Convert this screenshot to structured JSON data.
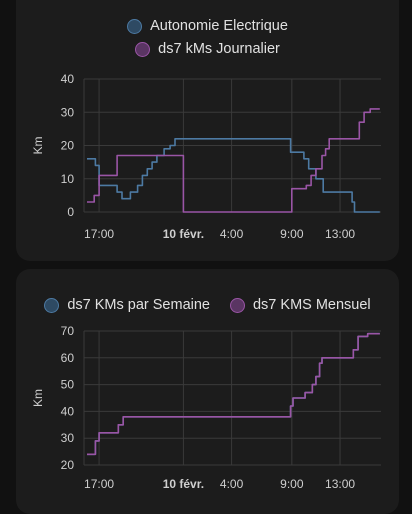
{
  "cards": [
    {
      "legend": [
        {
          "label": "Autonomie Electrique",
          "color": "#4d7aa3",
          "fill": "#2e4a63"
        },
        {
          "label": "ds7 kMs Journalier",
          "color": "#9a55a6",
          "fill": "#5a3563"
        }
      ],
      "chart_data": {
        "type": "line",
        "ylabel": "Km",
        "ylim": [
          0,
          40
        ],
        "yticks": [
          0,
          10,
          20,
          30,
          40
        ],
        "xticks": [
          {
            "label": "17:00",
            "t": 17,
            "bold": false
          },
          {
            "label": "10 févr.",
            "t": 24,
            "bold": true
          },
          {
            "label": "4:00",
            "t": 28,
            "bold": false
          },
          {
            "label": "9:00",
            "t": 33,
            "bold": false
          },
          {
            "label": "13:00",
            "t": 37,
            "bold": false
          }
        ],
        "series": [
          {
            "name": "Autonomie Electrique",
            "color": "#4d7aa3",
            "points": [
              [
                16.0,
                16
              ],
              [
                16.7,
                16
              ],
              [
                16.7,
                14
              ],
              [
                17.0,
                14
              ],
              [
                17.0,
                8
              ],
              [
                18.5,
                8
              ],
              [
                18.5,
                6
              ],
              [
                18.9,
                6
              ],
              [
                18.9,
                4
              ],
              [
                19.6,
                4
              ],
              [
                19.6,
                6
              ],
              [
                20.2,
                6
              ],
              [
                20.2,
                8
              ],
              [
                20.6,
                8
              ],
              [
                20.6,
                11
              ],
              [
                21.0,
                11
              ],
              [
                21.0,
                13
              ],
              [
                21.4,
                13
              ],
              [
                21.4,
                15
              ],
              [
                21.8,
                15
              ],
              [
                21.8,
                17
              ],
              [
                22.4,
                17
              ],
              [
                22.4,
                19
              ],
              [
                22.9,
                19
              ],
              [
                22.9,
                20
              ],
              [
                23.3,
                20
              ],
              [
                23.3,
                22
              ],
              [
                32.9,
                22
              ],
              [
                32.9,
                18
              ],
              [
                34.0,
                18
              ],
              [
                34.0,
                16
              ],
              [
                34.4,
                16
              ],
              [
                34.4,
                13
              ],
              [
                35.0,
                13
              ],
              [
                35.0,
                10
              ],
              [
                35.6,
                10
              ],
              [
                35.6,
                6
              ],
              [
                38.0,
                6
              ],
              [
                38.0,
                3
              ],
              [
                38.2,
                3
              ],
              [
                38.2,
                0
              ],
              [
                40.3,
                0
              ]
            ]
          },
          {
            "name": "ds7 kMs Journalier",
            "color": "#9a55a6",
            "points": [
              [
                16.0,
                3
              ],
              [
                16.6,
                3
              ],
              [
                16.6,
                5
              ],
              [
                17.0,
                5
              ],
              [
                17.0,
                11
              ],
              [
                18.5,
                11
              ],
              [
                18.5,
                17
              ],
              [
                24.0,
                17
              ],
              [
                24.0,
                0
              ],
              [
                33.0,
                0
              ],
              [
                33.0,
                7
              ],
              [
                34.2,
                7
              ],
              [
                34.2,
                8
              ],
              [
                34.6,
                8
              ],
              [
                34.6,
                11
              ],
              [
                35.0,
                11
              ],
              [
                35.0,
                13
              ],
              [
                35.5,
                13
              ],
              [
                35.5,
                17
              ],
              [
                35.8,
                17
              ],
              [
                35.8,
                19
              ],
              [
                36.1,
                19
              ],
              [
                36.1,
                22
              ],
              [
                38.6,
                22
              ],
              [
                38.6,
                27
              ],
              [
                39.0,
                27
              ],
              [
                39.0,
                30
              ],
              [
                39.5,
                30
              ],
              [
                39.5,
                31
              ],
              [
                40.3,
                31
              ]
            ]
          }
        ]
      }
    },
    {
      "legend": [
        {
          "label": "ds7 KMs par Semaine",
          "color": "#4d7aa3",
          "fill": "#2e4a63"
        },
        {
          "label": "ds7 KMS Mensuel",
          "color": "#9a55a6",
          "fill": "#5a3563"
        }
      ],
      "chart_data": {
        "type": "line",
        "ylabel": "Km",
        "ylim": [
          20,
          70
        ],
        "yticks": [
          20,
          30,
          40,
          50,
          60,
          70
        ],
        "xticks": [
          {
            "label": "17:00",
            "t": 17,
            "bold": false
          },
          {
            "label": "10 févr.",
            "t": 24,
            "bold": true
          },
          {
            "label": "4:00",
            "t": 28,
            "bold": false
          },
          {
            "label": "9:00",
            "t": 33,
            "bold": false
          },
          {
            "label": "13:00",
            "t": 37,
            "bold": false
          }
        ],
        "series": [
          {
            "name": "ds7 KMs par Semaine",
            "color": "#4d7aa3",
            "points": [
              [
                16.0,
                24
              ],
              [
                16.7,
                24
              ],
              [
                16.7,
                29
              ],
              [
                17.0,
                29
              ],
              [
                17.0,
                32
              ],
              [
                18.6,
                32
              ],
              [
                18.6,
                35
              ],
              [
                19.0,
                35
              ],
              [
                19.0,
                38
              ],
              [
                32.9,
                38
              ],
              [
                32.9,
                42
              ],
              [
                33.1,
                42
              ],
              [
                33.1,
                45
              ],
              [
                34.1,
                45
              ],
              [
                34.1,
                47
              ],
              [
                34.7,
                47
              ],
              [
                34.7,
                50
              ],
              [
                35.0,
                50
              ],
              [
                35.0,
                53
              ],
              [
                35.3,
                53
              ],
              [
                35.3,
                58
              ],
              [
                35.5,
                58
              ],
              [
                35.5,
                60
              ],
              [
                38.1,
                60
              ],
              [
                38.1,
                63
              ],
              [
                38.5,
                63
              ],
              [
                38.5,
                68
              ],
              [
                39.3,
                68
              ],
              [
                39.3,
                69
              ],
              [
                40.3,
                69
              ]
            ]
          },
          {
            "name": "ds7 KMS Mensuel",
            "color": "#9a55a6",
            "points": [
              [
                16.0,
                24
              ],
              [
                16.7,
                24
              ],
              [
                16.7,
                29
              ],
              [
                17.0,
                29
              ],
              [
                17.0,
                32
              ],
              [
                18.6,
                32
              ],
              [
                18.6,
                35
              ],
              [
                19.0,
                35
              ],
              [
                19.0,
                38
              ],
              [
                32.9,
                38
              ],
              [
                32.9,
                42
              ],
              [
                33.1,
                42
              ],
              [
                33.1,
                45
              ],
              [
                34.1,
                45
              ],
              [
                34.1,
                47
              ],
              [
                34.7,
                47
              ],
              [
                34.7,
                50
              ],
              [
                35.0,
                50
              ],
              [
                35.0,
                53
              ],
              [
                35.3,
                53
              ],
              [
                35.3,
                58
              ],
              [
                35.5,
                58
              ],
              [
                35.5,
                60
              ],
              [
                38.1,
                60
              ],
              [
                38.1,
                63
              ],
              [
                38.5,
                63
              ],
              [
                38.5,
                68
              ],
              [
                39.3,
                68
              ],
              [
                39.3,
                69
              ],
              [
                40.3,
                69
              ]
            ]
          }
        ]
      }
    }
  ]
}
